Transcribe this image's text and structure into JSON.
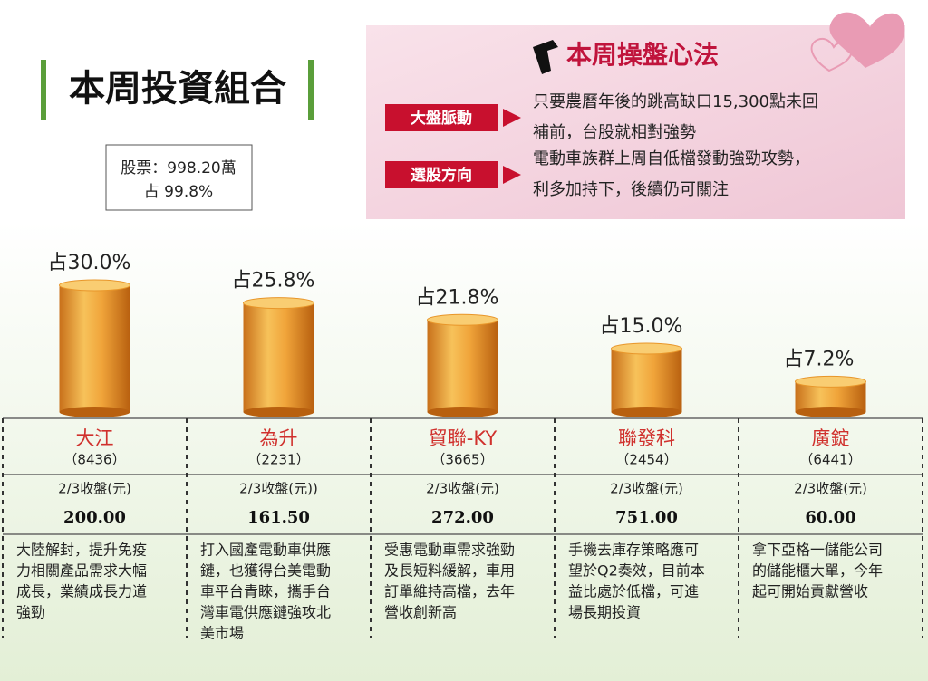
{
  "header": {
    "title": "本周投資組合",
    "summary": [
      "股票：998.20萬",
      "占 99.8%"
    ]
  },
  "strategy": {
    "title": "本周操盤心法",
    "items": [
      {
        "label": "大盤脈動",
        "text": [
          "只要農曆年後的跳高缺口15,300點未回",
          "補前，台股就相對強勢"
        ]
      },
      {
        "label": "選股方向",
        "text": [
          "電動車族群上周自低檔發動強勁攻勢，",
          "利多加持下，後續仍可關注"
        ]
      }
    ]
  },
  "chart_data": {
    "type": "bar",
    "categories": [
      "大江",
      "為升",
      "貿聯-KY",
      "聯發科",
      "廣錠"
    ],
    "codes": [
      "（8436）",
      "（2231）",
      "（3665）",
      "（2454）",
      "（6441）"
    ],
    "values": [
      30.0,
      25.8,
      21.8,
      15.0,
      7.2
    ],
    "value_labels": [
      "占30.0%",
      "占25.8%",
      "占21.8%",
      "占15.0%",
      "占7.2%"
    ],
    "color": "#e8962a"
  },
  "table": {
    "rows": [
      {
        "close_label": "2/3收盤(元)",
        "close": "200.00",
        "note": [
          "大陸解封，提升免疫",
          "力相關產品需求大幅",
          "成長，業績成長力道",
          "強勁"
        ]
      },
      {
        "close_label": "2/3收盤(元))",
        "close": "161.50",
        "note": [
          "打入國產電動車供應",
          "鏈，也獲得台美電動",
          "車平台青睞，攜手台",
          "灣車電供應鏈強攻北",
          "美市場"
        ]
      },
      {
        "close_label": "2/3收盤(元)",
        "close": "272.00",
        "note": [
          "受惠電動車需求強勁",
          "及長短料緩解，車用",
          "訂單維持高檔，去年",
          "營收創新高"
        ]
      },
      {
        "close_label": "2/3收盤(元)",
        "close": "751.00",
        "note": [
          "手機去庫存策略應可",
          "望於Q2奏效，目前本",
          "益比處於低檔，可進",
          "場長期投資"
        ]
      },
      {
        "close_label": "2/3收盤(元)",
        "close": "60.00",
        "note": [
          "拿下亞格一儲能公司",
          "的儲能櫃大單，今年",
          "起可開始貢獻營收"
        ]
      }
    ]
  }
}
